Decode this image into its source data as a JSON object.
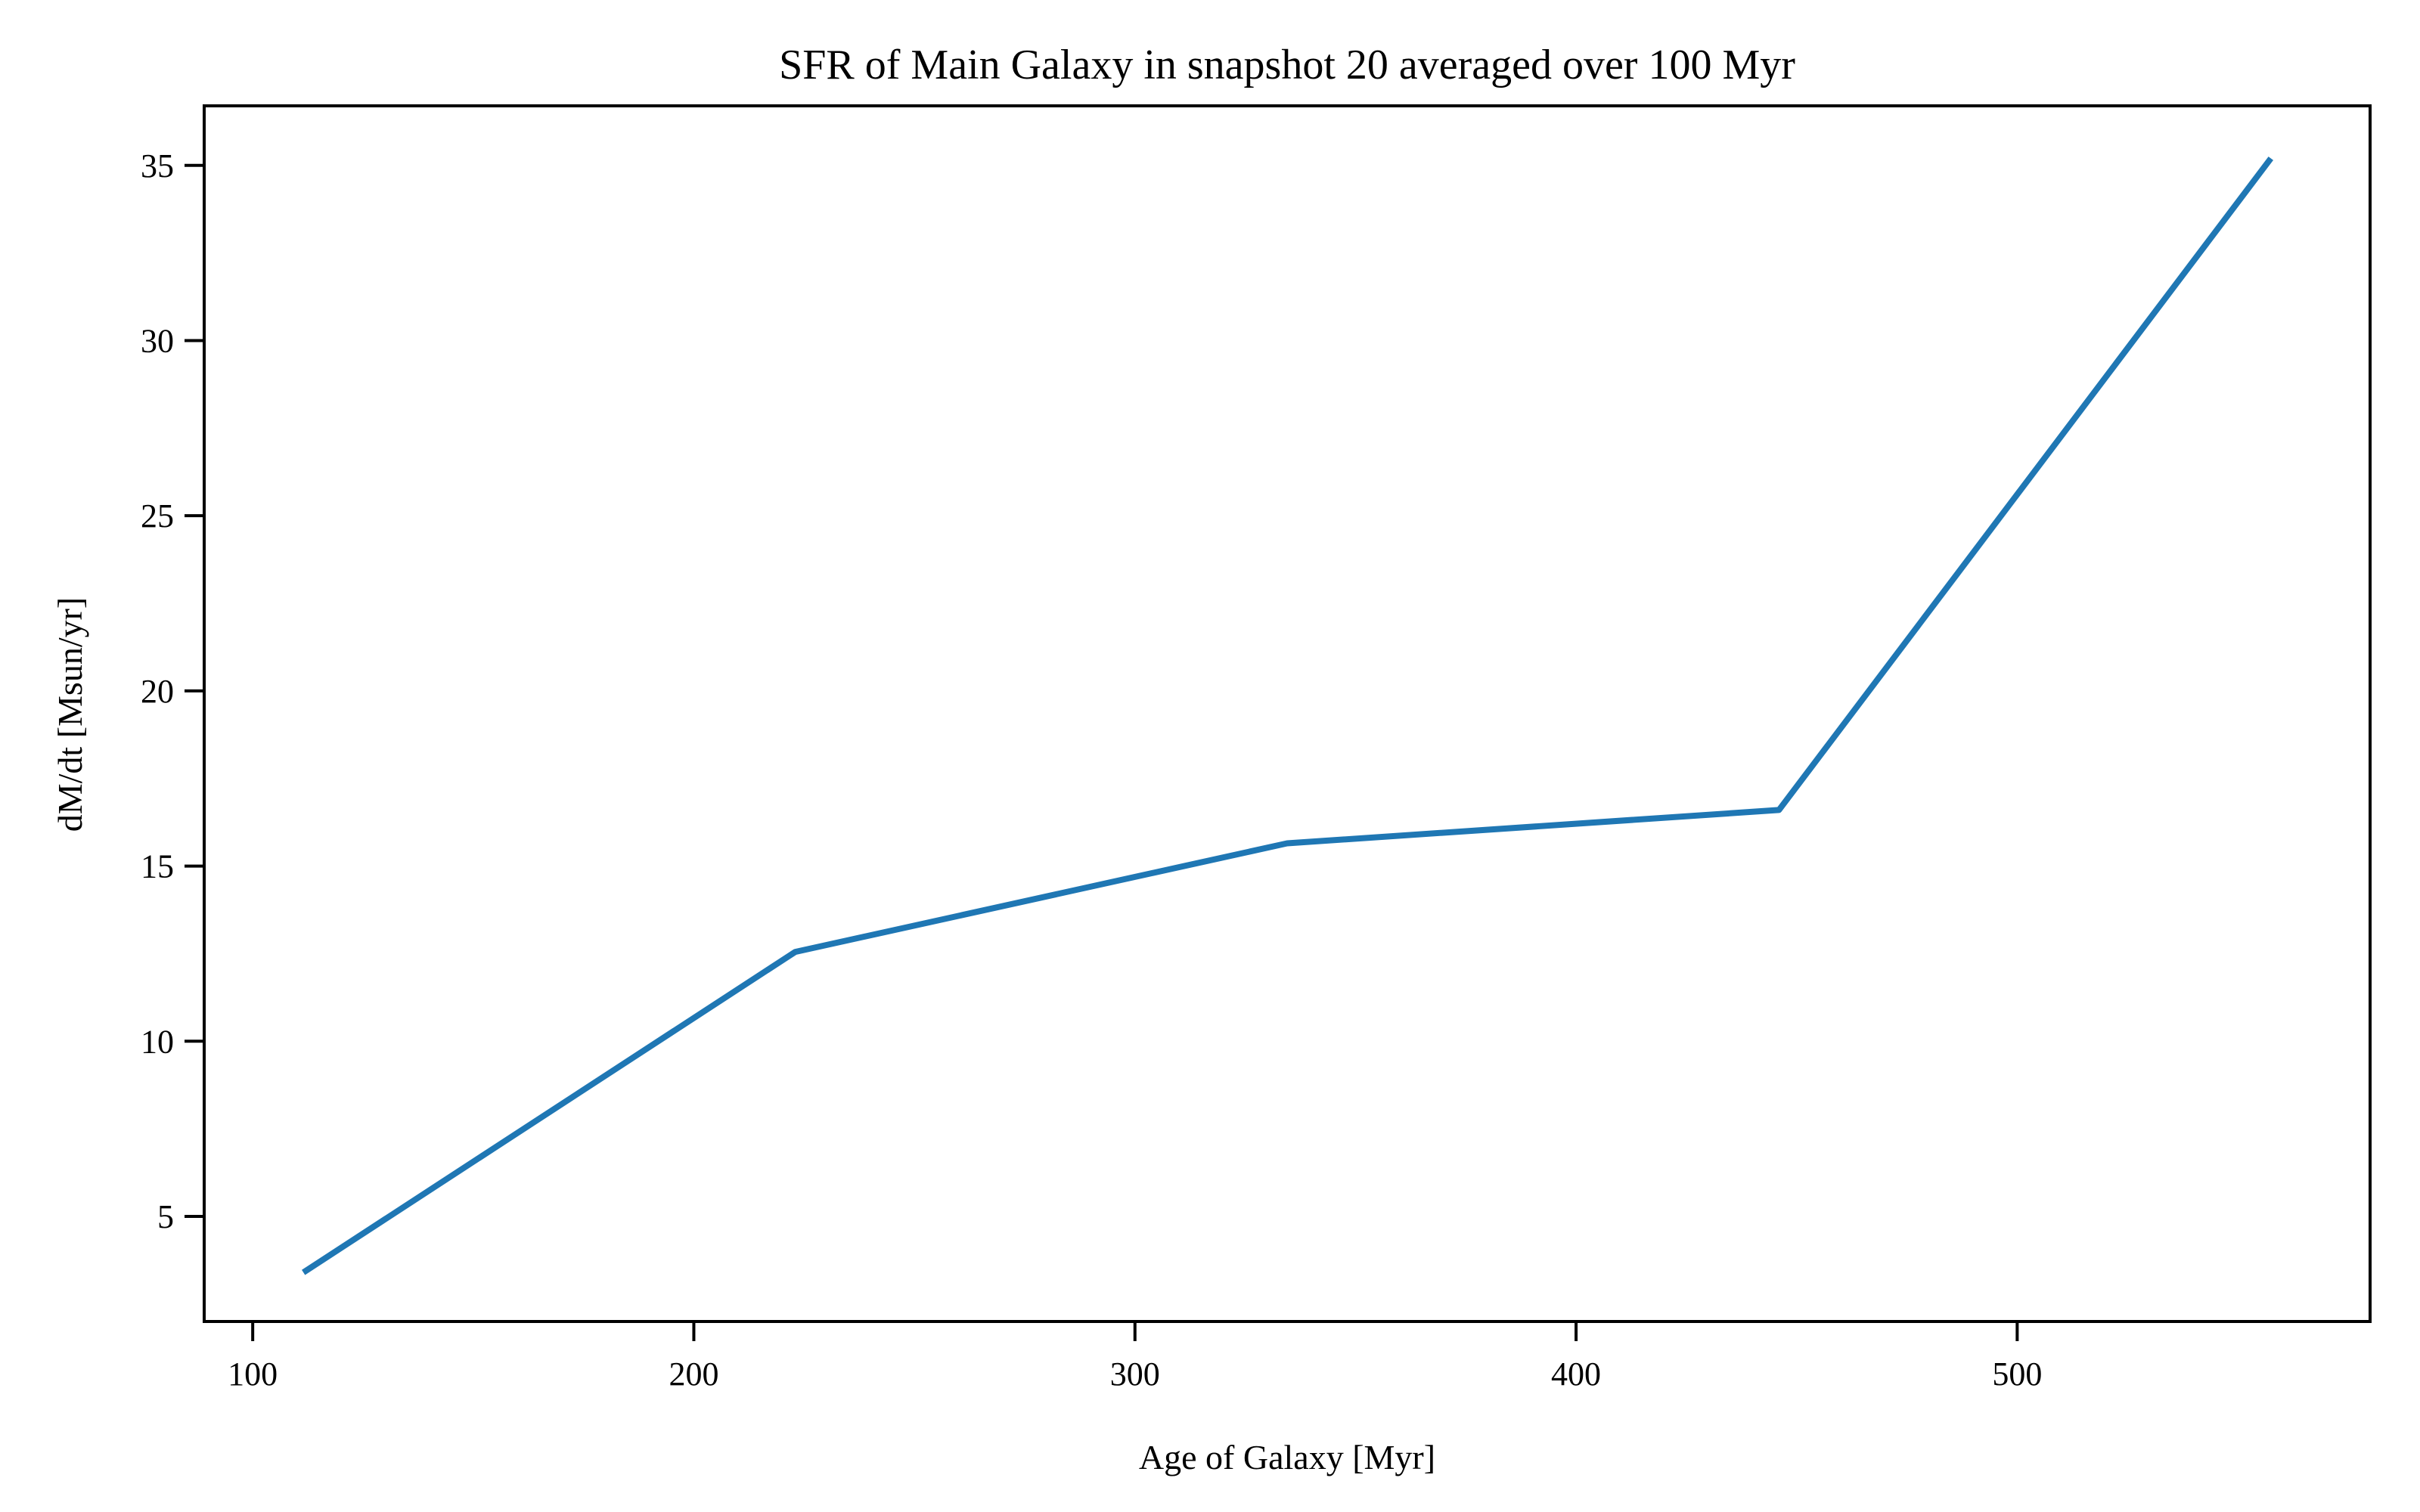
{
  "chart_data": {
    "type": "line",
    "title": "SFR of Main Galaxy in snapshot 20 averaged over 100 Myr",
    "xlabel": "Age of Galaxy [Myr]",
    "ylabel": "dM/dt [Msun/yr]",
    "xlim": [
      89,
      580
    ],
    "ylim": [
      2.0,
      36.7
    ],
    "xticks": [
      100,
      200,
      300,
      400,
      500
    ],
    "yticks": [
      5,
      10,
      15,
      20,
      25,
      30,
      35
    ],
    "xtick_labels": [
      "100",
      "200",
      "300",
      "400",
      "500"
    ],
    "ytick_labels": [
      "5",
      "10",
      "15",
      "20",
      "25",
      "30",
      "35"
    ],
    "grid": false,
    "series": [
      {
        "color": "#1f77b4",
        "x": [
          111.5,
          223.0,
          334.5,
          446.0,
          557.5
        ],
        "y": [
          3.4,
          12.55,
          15.65,
          16.6,
          35.2
        ]
      }
    ]
  }
}
